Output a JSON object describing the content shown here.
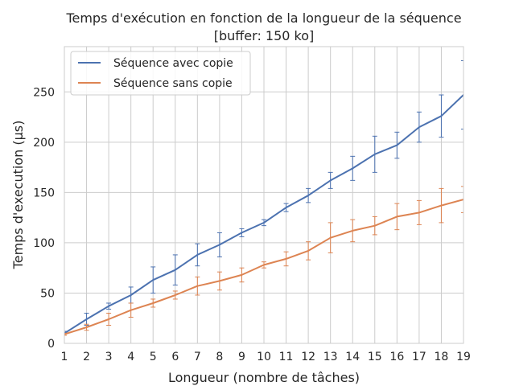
{
  "chart_data": {
    "type": "line",
    "title": "Temps d'exécution en fonction de la longueur de la séquence",
    "subtitle": "[buffer: 150 ko]",
    "xlabel": "Longueur (nombre de tâches)",
    "ylabel": "Temps d'execution (µs)",
    "xlim": [
      1,
      19
    ],
    "ylim": [
      0,
      295
    ],
    "x_ticks": [
      1,
      2,
      3,
      4,
      5,
      6,
      7,
      8,
      9,
      10,
      11,
      12,
      13,
      14,
      15,
      16,
      17,
      18,
      19
    ],
    "y_ticks": [
      0,
      50,
      100,
      150,
      200,
      250
    ],
    "grid": true,
    "legend_position": "top-left",
    "x": [
      1,
      2,
      3,
      4,
      5,
      6,
      7,
      8,
      9,
      10,
      11,
      12,
      13,
      14,
      15,
      16,
      17,
      18,
      19
    ],
    "series": [
      {
        "name": "Séquence avec copie",
        "color": "#4c72b0",
        "values": [
          10,
          24,
          37,
          48,
          63,
          73,
          88,
          98,
          110,
          120,
          135,
          147,
          162,
          174,
          188,
          197,
          215,
          226,
          247
        ],
        "errors": [
          2,
          6,
          3,
          8,
          13,
          15,
          11,
          12,
          4,
          3,
          4,
          7,
          8,
          12,
          18,
          13,
          15,
          21,
          34
        ]
      },
      {
        "name": "Séquence sans copie",
        "color": "#dd8452",
        "values": [
          9,
          16,
          24,
          33,
          40,
          48,
          57,
          62,
          68,
          78,
          84,
          92,
          105,
          112,
          117,
          126,
          130,
          137,
          143
        ],
        "errors": [
          1,
          3,
          6,
          7,
          4,
          4,
          9,
          9,
          7,
          3,
          7,
          9,
          15,
          11,
          9,
          13,
          12,
          17,
          13
        ]
      }
    ]
  }
}
